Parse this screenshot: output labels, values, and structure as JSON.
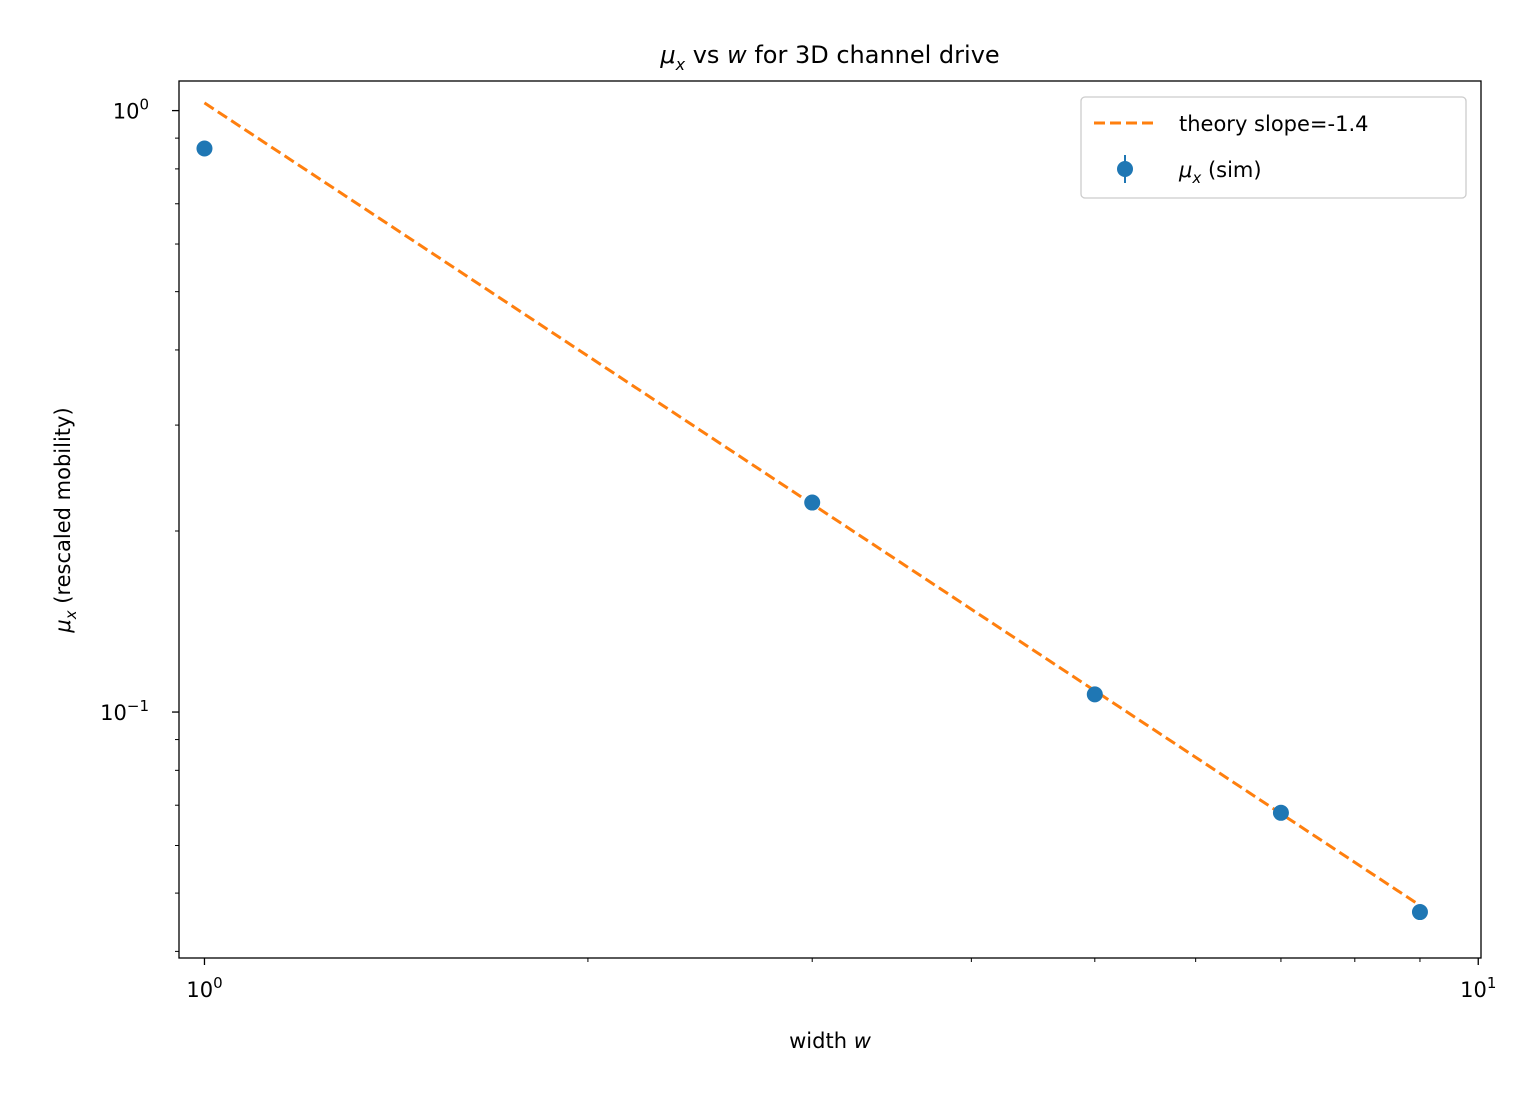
{
  "chart_data": {
    "type": "scatter",
    "title": {
      "mu": "μ",
      "sub": "x",
      "mid": " vs ",
      "w": "w",
      "rest": " for 3D channel drive"
    },
    "xlabel": {
      "prefix": "width ",
      "var": "w"
    },
    "ylabel": {
      "mu": "μ",
      "sub": "x",
      "rest": " (rescaled mobility)"
    },
    "x_scale": "log",
    "y_scale": "log",
    "xlim": [
      0.955,
      10.05
    ],
    "ylim": [
      0.039,
      1.12
    ],
    "x_ticks": [
      {
        "value": 1,
        "base": "10",
        "exp": "0"
      },
      {
        "value": 10,
        "base": "10",
        "exp": "1"
      }
    ],
    "y_ticks": [
      {
        "value": 0.1,
        "base": "10",
        "exp": "−1"
      },
      {
        "value": 1,
        "base": "10",
        "exp": "0"
      }
    ],
    "grid": false,
    "legend_position": "top-right",
    "series": [
      {
        "name": "theory slope=-1.4",
        "kind": "line",
        "style": "dashed",
        "color": "#ff7f0e",
        "x": [
          1.0,
          9.0
        ],
        "y": [
          1.03,
          0.0477
        ]
      },
      {
        "name": {
          "mu": "μ",
          "sub": "x",
          "rest": " (sim)"
        },
        "kind": "errorbar-points",
        "color": "#1f77b4",
        "x": [
          1.0,
          3.0,
          5.0,
          7.0,
          9.0
        ],
        "y": [
          0.865,
          0.223,
          0.107,
          0.068,
          0.0465
        ]
      }
    ]
  }
}
